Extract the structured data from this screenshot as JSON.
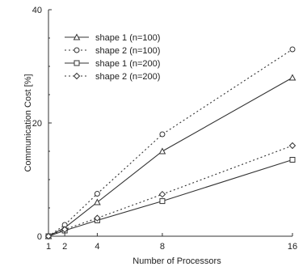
{
  "chart_data": {
    "type": "line",
    "title": "",
    "xlabel": "Number of Processors",
    "ylabel": "Communication Cost [%]",
    "x_ticks": [
      1,
      2,
      4,
      8,
      16
    ],
    "y_ticks": [
      0,
      20,
      40
    ],
    "xlim": [
      1,
      16
    ],
    "ylim": [
      0,
      40
    ],
    "grid": false,
    "legend_position": "top-left",
    "series": [
      {
        "name": "shape 1 (n=100)",
        "marker": "triangle",
        "dash": "solid",
        "x": [
          1,
          2,
          4,
          8,
          16
        ],
        "y": [
          0,
          1.5,
          6,
          15,
          28
        ]
      },
      {
        "name": "shape 2 (n=100)",
        "marker": "circle",
        "dash": "dotted",
        "x": [
          1,
          2,
          4,
          8,
          16
        ],
        "y": [
          0,
          2,
          7.5,
          18,
          33
        ]
      },
      {
        "name": "shape 1 (n=200)",
        "marker": "square",
        "dash": "solid",
        "x": [
          1,
          2,
          4,
          8,
          16
        ],
        "y": [
          0,
          1,
          2.8,
          6.2,
          13.5
        ]
      },
      {
        "name": "shape 2 (n=200)",
        "marker": "diamond",
        "dash": "dotted",
        "x": [
          1,
          2,
          4,
          8,
          16
        ],
        "y": [
          0,
          1.2,
          3.2,
          7.4,
          16
        ]
      }
    ]
  }
}
